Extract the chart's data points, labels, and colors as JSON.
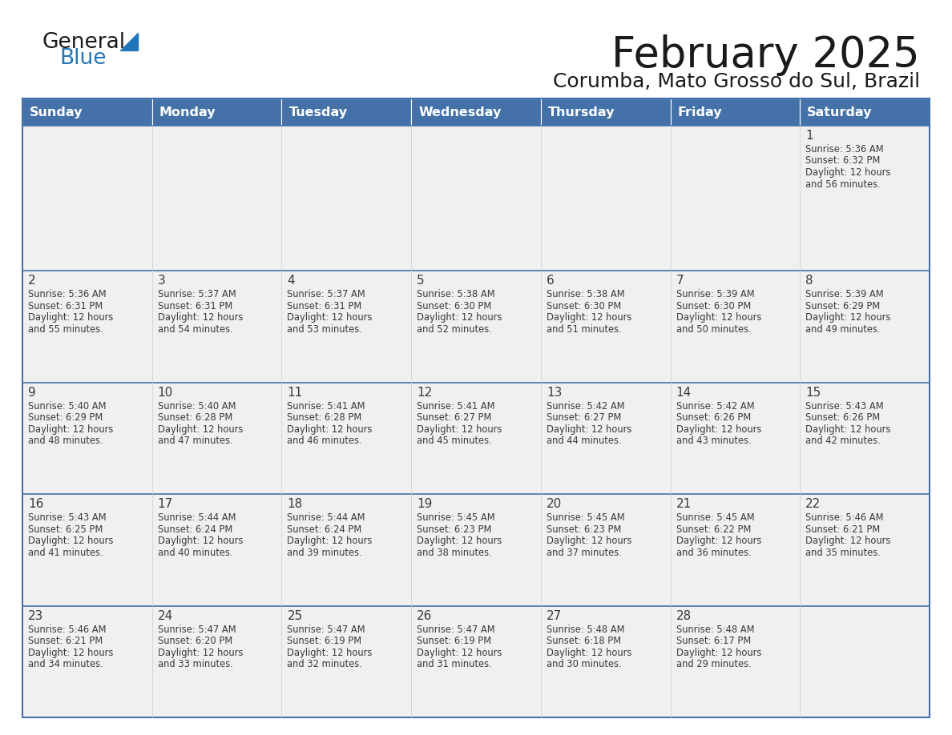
{
  "title": "February 2025",
  "subtitle": "Corumba, Mato Grosso do Sul, Brazil",
  "days_of_week": [
    "Sunday",
    "Monday",
    "Tuesday",
    "Wednesday",
    "Thursday",
    "Friday",
    "Saturday"
  ],
  "header_bg": "#4472a8",
  "header_text": "#ffffff",
  "cell_bg": "#f0f0f0",
  "day_text_color": "#3a3a3a",
  "border_color": "#4472a8",
  "title_color": "#1a1a1a",
  "subtitle_color": "#1a1a1a",
  "logo_general_color": "#1a1a1a",
  "logo_blue_color": "#2175b8",
  "calendar_data": [
    [
      null,
      null,
      null,
      null,
      null,
      null,
      {
        "day": 1,
        "sunrise": "5:36 AM",
        "sunset": "6:32 PM",
        "daylight": "12 hours and 56 minutes."
      }
    ],
    [
      {
        "day": 2,
        "sunrise": "5:36 AM",
        "sunset": "6:31 PM",
        "daylight": "12 hours and 55 minutes."
      },
      {
        "day": 3,
        "sunrise": "5:37 AM",
        "sunset": "6:31 PM",
        "daylight": "12 hours and 54 minutes."
      },
      {
        "day": 4,
        "sunrise": "5:37 AM",
        "sunset": "6:31 PM",
        "daylight": "12 hours and 53 minutes."
      },
      {
        "day": 5,
        "sunrise": "5:38 AM",
        "sunset": "6:30 PM",
        "daylight": "12 hours and 52 minutes."
      },
      {
        "day": 6,
        "sunrise": "5:38 AM",
        "sunset": "6:30 PM",
        "daylight": "12 hours and 51 minutes."
      },
      {
        "day": 7,
        "sunrise": "5:39 AM",
        "sunset": "6:30 PM",
        "daylight": "12 hours and 50 minutes."
      },
      {
        "day": 8,
        "sunrise": "5:39 AM",
        "sunset": "6:29 PM",
        "daylight": "12 hours and 49 minutes."
      }
    ],
    [
      {
        "day": 9,
        "sunrise": "5:40 AM",
        "sunset": "6:29 PM",
        "daylight": "12 hours and 48 minutes."
      },
      {
        "day": 10,
        "sunrise": "5:40 AM",
        "sunset": "6:28 PM",
        "daylight": "12 hours and 47 minutes."
      },
      {
        "day": 11,
        "sunrise": "5:41 AM",
        "sunset": "6:28 PM",
        "daylight": "12 hours and 46 minutes."
      },
      {
        "day": 12,
        "sunrise": "5:41 AM",
        "sunset": "6:27 PM",
        "daylight": "12 hours and 45 minutes."
      },
      {
        "day": 13,
        "sunrise": "5:42 AM",
        "sunset": "6:27 PM",
        "daylight": "12 hours and 44 minutes."
      },
      {
        "day": 14,
        "sunrise": "5:42 AM",
        "sunset": "6:26 PM",
        "daylight": "12 hours and 43 minutes."
      },
      {
        "day": 15,
        "sunrise": "5:43 AM",
        "sunset": "6:26 PM",
        "daylight": "12 hours and 42 minutes."
      }
    ],
    [
      {
        "day": 16,
        "sunrise": "5:43 AM",
        "sunset": "6:25 PM",
        "daylight": "12 hours and 41 minutes."
      },
      {
        "day": 17,
        "sunrise": "5:44 AM",
        "sunset": "6:24 PM",
        "daylight": "12 hours and 40 minutes."
      },
      {
        "day": 18,
        "sunrise": "5:44 AM",
        "sunset": "6:24 PM",
        "daylight": "12 hours and 39 minutes."
      },
      {
        "day": 19,
        "sunrise": "5:45 AM",
        "sunset": "6:23 PM",
        "daylight": "12 hours and 38 minutes."
      },
      {
        "day": 20,
        "sunrise": "5:45 AM",
        "sunset": "6:23 PM",
        "daylight": "12 hours and 37 minutes."
      },
      {
        "day": 21,
        "sunrise": "5:45 AM",
        "sunset": "6:22 PM",
        "daylight": "12 hours and 36 minutes."
      },
      {
        "day": 22,
        "sunrise": "5:46 AM",
        "sunset": "6:21 PM",
        "daylight": "12 hours and 35 minutes."
      }
    ],
    [
      {
        "day": 23,
        "sunrise": "5:46 AM",
        "sunset": "6:21 PM",
        "daylight": "12 hours and 34 minutes."
      },
      {
        "day": 24,
        "sunrise": "5:47 AM",
        "sunset": "6:20 PM",
        "daylight": "12 hours and 33 minutes."
      },
      {
        "day": 25,
        "sunrise": "5:47 AM",
        "sunset": "6:19 PM",
        "daylight": "12 hours and 32 minutes."
      },
      {
        "day": 26,
        "sunrise": "5:47 AM",
        "sunset": "6:19 PM",
        "daylight": "12 hours and 31 minutes."
      },
      {
        "day": 27,
        "sunrise": "5:48 AM",
        "sunset": "6:18 PM",
        "daylight": "12 hours and 30 minutes."
      },
      {
        "day": 28,
        "sunrise": "5:48 AM",
        "sunset": "6:17 PM",
        "daylight": "12 hours and 29 minutes."
      },
      null
    ]
  ]
}
